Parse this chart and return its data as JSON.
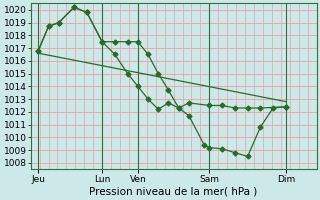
{
  "xlabel": "Pression niveau de la mer( hPa )",
  "ylim": [
    1007.5,
    1020.5
  ],
  "xlim": [
    0,
    112
  ],
  "yticks": [
    1008,
    1009,
    1010,
    1011,
    1012,
    1013,
    1014,
    1015,
    1016,
    1017,
    1018,
    1019,
    1020
  ],
  "xtick_positions": [
    3,
    28,
    42,
    70,
    100
  ],
  "xtick_labels": [
    "Jeu",
    "Lun",
    "Ven",
    "Sam",
    "Dim"
  ],
  "vline_positions": [
    3,
    28,
    42,
    70,
    100
  ],
  "bg_color": "#cce8e8",
  "grid_color_h": "#e8a0a0",
  "grid_color_v": "#e8a0a0",
  "vline_color": "#3a6b3a",
  "line_color": "#2a6b2a",
  "line1_x": [
    3,
    7,
    11,
    17,
    22,
    28,
    33,
    38,
    42,
    46,
    50,
    54,
    58,
    62,
    70,
    75,
    80,
    85,
    90,
    100
  ],
  "line1_y": [
    1016.8,
    1018.7,
    1019.0,
    1020.2,
    1019.8,
    1017.5,
    1017.5,
    1017.5,
    1017.5,
    1016.5,
    1015.0,
    1013.7,
    1012.3,
    1012.7,
    1012.5,
    1012.5,
    1012.3,
    1012.3,
    1012.3,
    1012.4
  ],
  "line2_x": [
    3,
    7,
    11,
    17,
    22,
    28,
    33,
    38,
    42,
    46,
    50,
    54,
    58,
    62,
    68,
    70,
    75,
    80,
    85,
    90,
    95,
    100
  ],
  "line2_y": [
    1016.8,
    1018.7,
    1019.0,
    1020.2,
    1019.8,
    1017.5,
    1016.5,
    1015.0,
    1014.0,
    1013.0,
    1012.2,
    1012.7,
    1012.3,
    1011.7,
    1009.4,
    1009.2,
    1009.1,
    1008.8,
    1008.5,
    1010.8,
    1012.3,
    1012.4
  ],
  "line3_x": [
    3,
    100
  ],
  "line3_y": [
    1016.6,
    1012.8
  ]
}
